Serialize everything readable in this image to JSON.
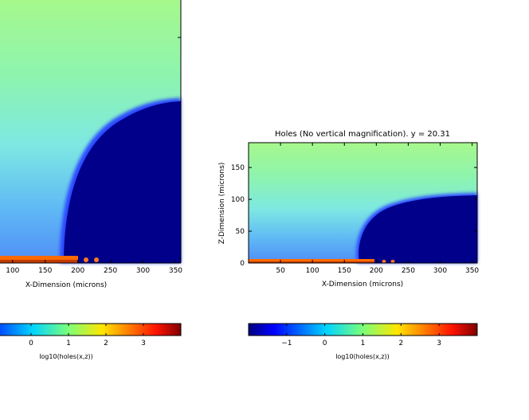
{
  "chart_data": [
    {
      "type": "heatmap",
      "title": "",
      "xlabel": "X-Dimension (microns)",
      "xticks": [
        100,
        150,
        200,
        250,
        300,
        350
      ],
      "xlim": [
        0,
        358
      ],
      "colorbar": {
        "label": "log10(holes(x,z))",
        "ticks": [
          "0",
          "1",
          "2",
          "3"
        ],
        "range": [
          -2,
          4
        ]
      }
    },
    {
      "type": "heatmap",
      "title": "Holes (No vertical magnification). y = 20.31",
      "xlabel": "X-Dimension (microns)",
      "ylabel": "Z-Dimension (microns)",
      "xticks": [
        50,
        100,
        150,
        200,
        250,
        300,
        350
      ],
      "yticks": [
        0,
        50,
        100,
        150
      ],
      "xlim": [
        0,
        358
      ],
      "ylim": [
        0,
        189
      ],
      "colorbar": {
        "label": "log10(holes(x,z))",
        "ticks": [
          "−1",
          "0",
          "1",
          "2",
          "3"
        ],
        "range": [
          -2,
          4
        ]
      }
    }
  ],
  "labels": {
    "left_xlabel": "X-Dimension (microns)",
    "left_cbar_label": "log10(holes(x,z))",
    "right_title": "Holes (No vertical magnification). y = 20.31",
    "right_xlabel": "X-Dimension (microns)",
    "right_ylabel": "Z-Dimension (microns)",
    "right_cbar_label": "log10(holes(x,z))"
  }
}
